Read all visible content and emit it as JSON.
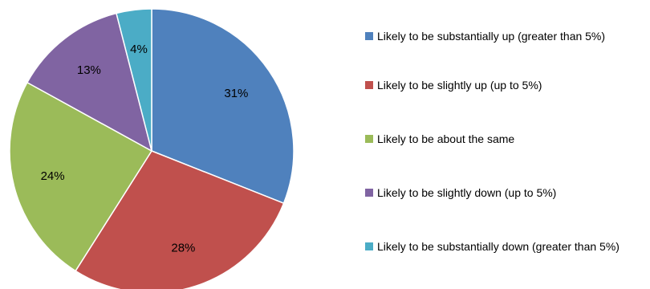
{
  "chart_data": {
    "type": "pie",
    "title": "",
    "start_angle_deg": 0,
    "direction": "clockwise",
    "legend_position": "right",
    "slices": [
      {
        "label": "Likely to be substantially up (greater than 5%)",
        "value": 31,
        "value_label": "31%",
        "color": "#4F81BD"
      },
      {
        "label": "Likely to be slightly up (up to 5%)",
        "value": 28,
        "value_label": "28%",
        "color": "#C0504D"
      },
      {
        "label": "Likely to be about the same",
        "value": 24,
        "value_label": "24%",
        "color": "#9BBB59"
      },
      {
        "label": "Likely to be slightly down (up to 5%)",
        "value": 13,
        "value_label": "13%",
        "color": "#8064A2"
      },
      {
        "label": "Likely to be substantially down (greater than 5%)",
        "value": 4,
        "value_label": "4%",
        "color": "#4BACC6"
      }
    ]
  }
}
